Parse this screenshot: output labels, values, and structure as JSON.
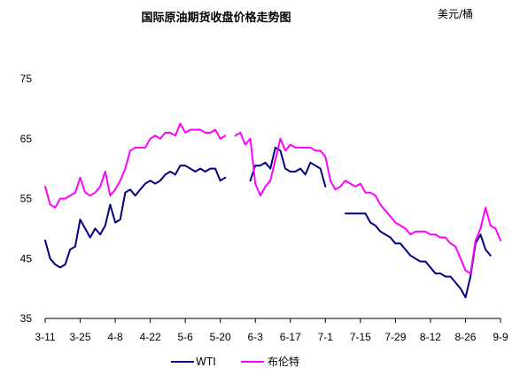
{
  "chart_data": {
    "type": "line",
    "title": "国际原油期货收盘价格走势图",
    "unit": "美元/桶",
    "ylim": [
      35,
      75
    ],
    "yticks": [
      35,
      45,
      55,
      65,
      75
    ],
    "x": [
      "3-11",
      "3-13",
      "3-15",
      "3-17",
      "3-19",
      "3-21",
      "3-23",
      "3-25",
      "3-27",
      "3-29",
      "3-31",
      "4-2",
      "4-4",
      "4-6",
      "4-8",
      "4-10",
      "4-12",
      "4-14",
      "4-16",
      "4-18",
      "4-20",
      "4-22",
      "4-24",
      "4-26",
      "4-28",
      "4-30",
      "5-2",
      "5-4",
      "5-6",
      "5-8",
      "5-10",
      "5-12",
      "5-14",
      "5-16",
      "5-18",
      "5-20",
      "5-22",
      "5-24",
      "5-26",
      "5-28",
      "5-30",
      "6-1",
      "6-3",
      "6-5",
      "6-7",
      "6-9",
      "6-11",
      "6-13",
      "6-15",
      "6-17",
      "6-19",
      "6-21",
      "6-23",
      "6-25",
      "6-27",
      "6-29",
      "7-1",
      "7-3",
      "7-5",
      "7-7",
      "7-9",
      "7-11",
      "7-13",
      "7-15",
      "7-17",
      "7-19",
      "7-21",
      "7-23",
      "7-25",
      "7-27",
      "7-29",
      "7-31",
      "8-2",
      "8-4",
      "8-6",
      "8-8",
      "8-10",
      "8-12",
      "8-14",
      "8-16",
      "8-18",
      "8-20",
      "8-22",
      "8-24",
      "8-26",
      "8-28",
      "8-30",
      "9-1",
      "9-3",
      "9-5",
      "9-7",
      "9-9"
    ],
    "xticks": [
      "3-11",
      "3-25",
      "4-8",
      "4-22",
      "5-6",
      "5-20",
      "6-3",
      "6-17",
      "7-1",
      "7-15",
      "7-29",
      "8-12",
      "8-26",
      "9-9"
    ],
    "series": [
      {
        "name": "WTI",
        "color": "#000080",
        "values": [
          48,
          45,
          44,
          43.5,
          44,
          46.5,
          47,
          51.5,
          50,
          48.5,
          50,
          49,
          50.5,
          54,
          51,
          51.5,
          56,
          56.5,
          55.5,
          56.5,
          57.5,
          58,
          57.5,
          58,
          59,
          59.5,
          59,
          60.5,
          60.5,
          60,
          59.5,
          60,
          59.5,
          60,
          60,
          58,
          58.5,
          null,
          null,
          null,
          null,
          58,
          60.5,
          60.5,
          61,
          60,
          63.5,
          63,
          60,
          59.5,
          59.5,
          60,
          59,
          61,
          60.5,
          60,
          57,
          null,
          null,
          null,
          52.5,
          52.5,
          52.5,
          52.5,
          52.5,
          51,
          50.5,
          49.5,
          49,
          48.5,
          47.5,
          47.5,
          46.5,
          45.5,
          45,
          44.5,
          44.5,
          43.5,
          42.5,
          42.5,
          42,
          42,
          41,
          40,
          38.5,
          42,
          47.5,
          49,
          46.5,
          45.5,
          null,
          44.5
        ]
      },
      {
        "name": "布伦特",
        "color": "#ff00ff",
        "values": [
          57,
          54,
          53.5,
          55,
          55,
          55.5,
          56,
          58.5,
          56,
          55.5,
          56,
          57,
          59.5,
          55.5,
          56.5,
          58,
          60,
          63,
          63.5,
          63.5,
          63.5,
          65,
          65.5,
          65,
          66,
          66,
          65.5,
          67.5,
          66,
          66.5,
          66.5,
          66.5,
          66,
          66,
          66.5,
          65,
          65.5,
          null,
          65.5,
          66,
          64,
          65,
          57.5,
          55.5,
          57,
          58,
          61.5,
          65,
          63,
          64,
          63.5,
          63.5,
          63.5,
          63.5,
          63,
          63,
          62,
          58,
          56.5,
          57,
          58,
          57.5,
          57,
          57.5,
          56,
          56,
          55.5,
          54,
          53,
          52,
          51,
          50.5,
          50,
          49,
          49.5,
          49.5,
          49.5,
          49,
          49,
          48.5,
          48.5,
          47.5,
          47,
          45,
          43,
          42.5,
          48,
          50,
          53.5,
          50.5,
          50,
          48
        ]
      }
    ],
    "legend": "bottom"
  }
}
